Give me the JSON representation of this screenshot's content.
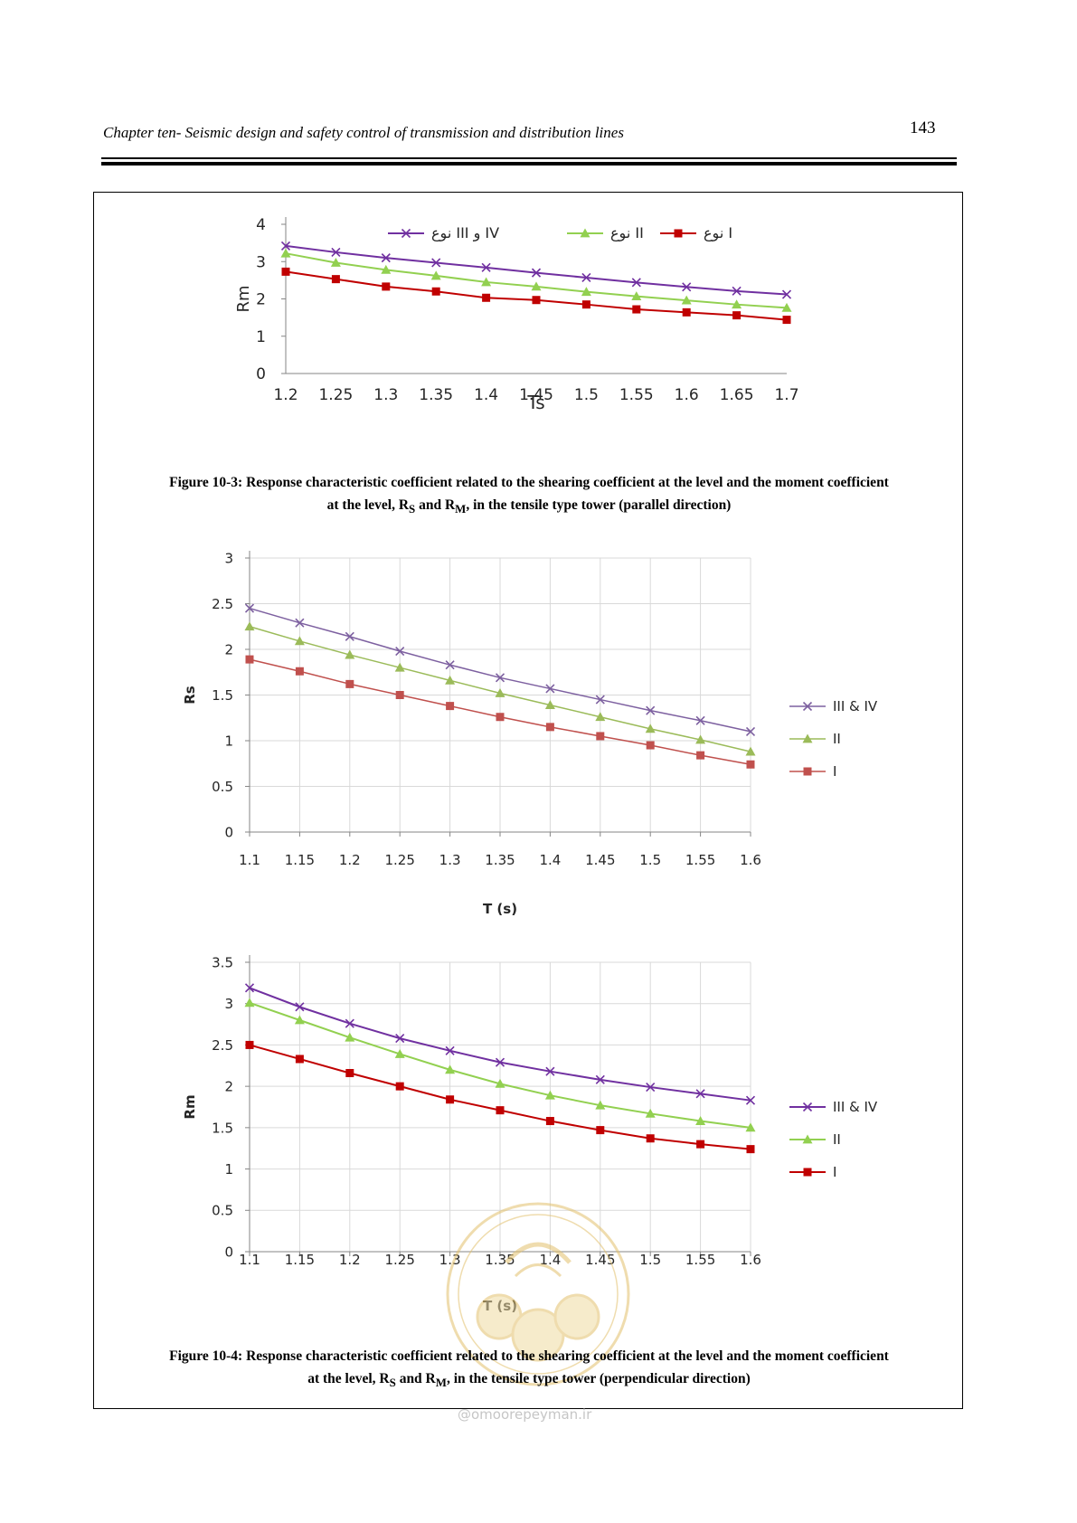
{
  "header": {
    "running_title": "Chapter ten- Seismic design and safety control of transmission and distribution lines",
    "page_number": "143"
  },
  "colors": {
    "series_IV": "#7030a0",
    "series_II": "#92d050",
    "series_I": "#c00000",
    "series_IV_light": "#7d60a0",
    "series_II_light": "#9bbb59",
    "series_I_light": "#c0504d",
    "watermark": "#e2c16c"
  },
  "chart_data": [
    {
      "type": "line",
      "title": "",
      "xlabel": "Ts",
      "ylabel": "Rm",
      "categories": [
        "1.2",
        "1.25",
        "1.3",
        "1.35",
        "1.4",
        "1.45",
        "1.5",
        "1.55",
        "1.6",
        "1.65",
        "1.7"
      ],
      "ylim": [
        0,
        4
      ],
      "yticks": [
        "0",
        "1",
        "2",
        "3",
        "4"
      ],
      "grid": false,
      "legend": "top",
      "series": [
        {
          "name": "نوع III و IV",
          "marker": "x",
          "color": "#7030a0",
          "values": [
            3.42,
            3.25,
            3.1,
            2.97,
            2.84,
            2.7,
            2.57,
            2.44,
            2.32,
            2.21,
            2.12
          ]
        },
        {
          "name": "نوع II",
          "marker": "triangle",
          "color": "#92d050",
          "values": [
            3.22,
            2.97,
            2.78,
            2.62,
            2.45,
            2.33,
            2.19,
            2.07,
            1.96,
            1.85,
            1.76
          ]
        },
        {
          "name": "نوع I",
          "marker": "square",
          "color": "#c00000",
          "values": [
            2.73,
            2.53,
            2.33,
            2.2,
            2.03,
            1.97,
            1.85,
            1.72,
            1.64,
            1.56,
            1.44
          ]
        }
      ]
    },
    {
      "type": "line",
      "title": "",
      "xlabel": "T (s)",
      "ylabel": "Rs",
      "categories": [
        "1.1",
        "1.15",
        "1.2",
        "1.25",
        "1.3",
        "1.35",
        "1.4",
        "1.45",
        "1.5",
        "1.55",
        "1.6"
      ],
      "ylim": [
        0,
        3
      ],
      "yticks": [
        "0",
        "0.5",
        "1",
        "1.5",
        "2",
        "2.5",
        "3"
      ],
      "grid": true,
      "legend": "right",
      "series": [
        {
          "name": "III & IV",
          "marker": "x",
          "color": "#7d60a0",
          "values": [
            2.45,
            2.29,
            2.14,
            1.98,
            1.83,
            1.69,
            1.57,
            1.45,
            1.33,
            1.22,
            1.1
          ]
        },
        {
          "name": "II",
          "marker": "triangle",
          "color": "#9bbb59",
          "values": [
            2.25,
            2.09,
            1.94,
            1.8,
            1.66,
            1.52,
            1.39,
            1.26,
            1.13,
            1.01,
            0.88
          ]
        },
        {
          "name": "I",
          "marker": "square",
          "color": "#c0504d",
          "values": [
            1.89,
            1.76,
            1.62,
            1.5,
            1.38,
            1.26,
            1.15,
            1.05,
            0.95,
            0.84,
            0.74
          ]
        }
      ]
    },
    {
      "type": "line",
      "title": "",
      "xlabel": "T (s)",
      "ylabel": "Rm",
      "categories": [
        "1.1",
        "1.15",
        "1.2",
        "1.25",
        "1.3",
        "1.35",
        "1.4",
        "1.45",
        "1.5",
        "1.55",
        "1.6"
      ],
      "ylim": [
        0,
        3.5
      ],
      "yticks": [
        "0",
        "0.5",
        "1",
        "1.5",
        "2",
        "2.5",
        "3",
        "3.5"
      ],
      "grid": true,
      "legend": "right",
      "series": [
        {
          "name": "III & IV",
          "marker": "x",
          "color": "#7030a0",
          "values": [
            3.19,
            2.96,
            2.76,
            2.58,
            2.43,
            2.29,
            2.18,
            2.08,
            1.99,
            1.91,
            1.83
          ]
        },
        {
          "name": "II",
          "marker": "triangle",
          "color": "#92d050",
          "values": [
            3.01,
            2.8,
            2.59,
            2.39,
            2.2,
            2.03,
            1.89,
            1.77,
            1.67,
            1.58,
            1.5
          ]
        },
        {
          "name": "I",
          "marker": "square",
          "color": "#c00000",
          "values": [
            2.5,
            2.33,
            2.16,
            2.0,
            1.84,
            1.71,
            1.58,
            1.47,
            1.37,
            1.3,
            1.24
          ]
        }
      ]
    }
  ],
  "captions": {
    "fig3_line1": "Figure 10-3: Response characteristic coefficient related to the shearing coefficient at the level and the moment coefficient",
    "fig3_line2_pre": "at the level, R",
    "fig3_sub_s": "S",
    "fig3_and": " and R",
    "fig3_sub_m": "M",
    "fig3_line2_post": ", in the tensile type tower (parallel direction)",
    "fig4_line1": "Figure 10-4: Response characteristic coefficient related to the shearing coefficient at the level and the moment coefficient",
    "fig4_line2_pre": "at the level, R",
    "fig4_sub_s": "S",
    "fig4_and": " and R",
    "fig4_sub_m": "M",
    "fig4_line2_post": ", in the tensile type tower (perpendicular direction)"
  },
  "watermark": {
    "site": "@omoorepeyman.ir"
  }
}
